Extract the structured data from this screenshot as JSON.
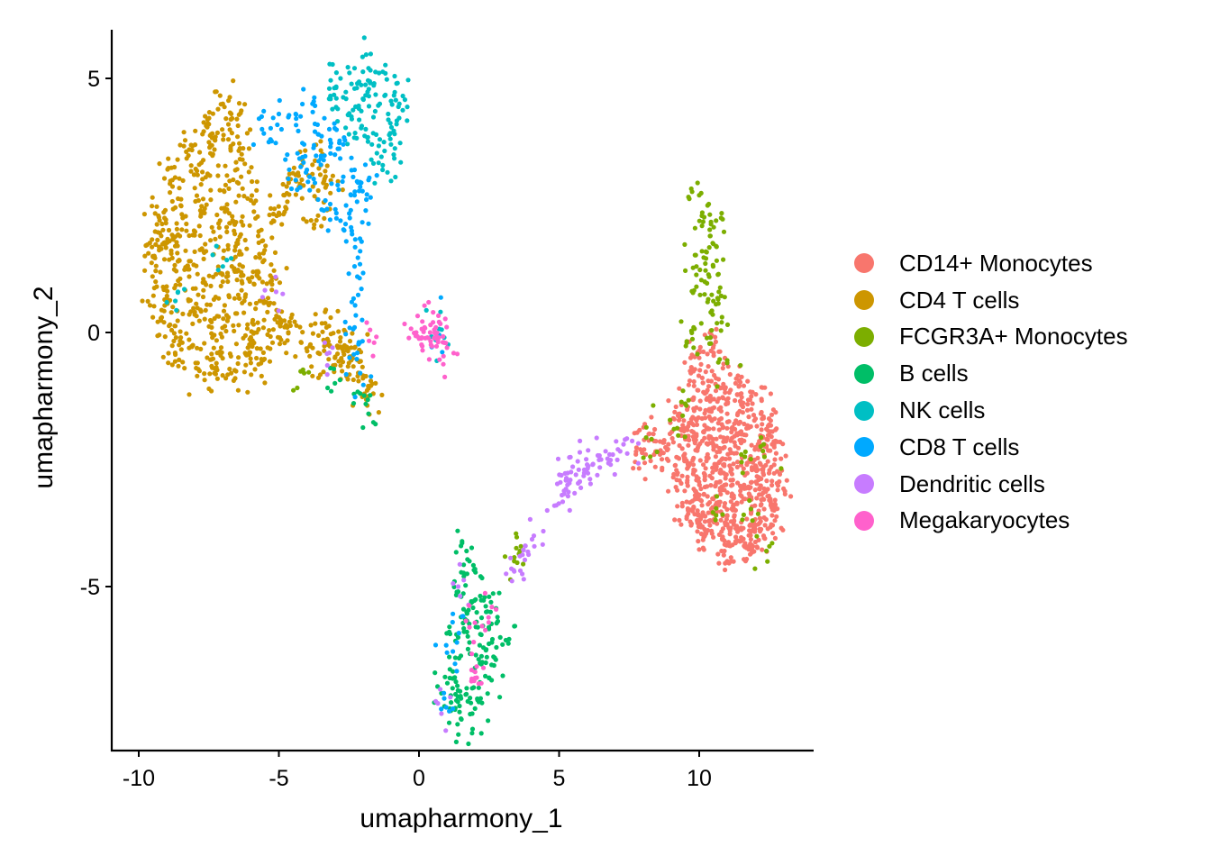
{
  "chart_data": {
    "type": "scatter",
    "xlabel": "umapharmony_1",
    "ylabel": "umapharmony_2",
    "xlim": [
      -11,
      14
    ],
    "ylim": [
      -8.2,
      6
    ],
    "xticks": [
      {
        "value": -10,
        "label": "-10"
      },
      {
        "value": -5,
        "label": "-5"
      },
      {
        "value": 0,
        "label": "0"
      },
      {
        "value": 5,
        "label": "5"
      },
      {
        "value": 10,
        "label": "10"
      }
    ],
    "yticks": [
      {
        "value": 5,
        "label": "5"
      },
      {
        "value": 0,
        "label": "0"
      },
      {
        "value": -5,
        "label": "-5"
      }
    ],
    "legend_position": "right",
    "grid": false,
    "series": [
      {
        "name": "CD14+ Monocytes",
        "color": "#F8766D",
        "points": [
          [
            10.2,
            -1.2
          ],
          [
            10.6,
            -0.9
          ],
          [
            11.3,
            -1.0
          ],
          [
            11.9,
            -1.4
          ],
          [
            12.4,
            -1.9
          ],
          [
            12.7,
            -2.5
          ],
          [
            12.8,
            -3.1
          ],
          [
            12.7,
            -3.7
          ],
          [
            12.3,
            -4.0
          ],
          [
            11.6,
            -4.2
          ],
          [
            10.9,
            -4.3
          ],
          [
            10.2,
            -4.0
          ],
          [
            9.6,
            -3.5
          ],
          [
            9.2,
            -2.9
          ],
          [
            8.9,
            -2.2
          ],
          [
            9.3,
            -1.6
          ],
          [
            9.8,
            -1.5
          ],
          [
            10.4,
            -1.7
          ],
          [
            11.0,
            -1.6
          ],
          [
            11.6,
            -1.8
          ],
          [
            12.1,
            -2.2
          ],
          [
            12.3,
            -2.8
          ],
          [
            12.2,
            -3.4
          ],
          [
            11.8,
            -3.8
          ],
          [
            11.1,
            -3.9
          ],
          [
            10.4,
            -3.7
          ],
          [
            9.9,
            -3.2
          ],
          [
            9.6,
            -2.6
          ],
          [
            9.9,
            -2.0
          ],
          [
            10.5,
            -2.2
          ],
          [
            11.1,
            -2.3
          ],
          [
            11.7,
            -2.6
          ],
          [
            11.8,
            -3.2
          ],
          [
            11.3,
            -3.5
          ],
          [
            10.7,
            -3.4
          ],
          [
            10.2,
            -2.9
          ],
          [
            10.6,
            -2.7
          ],
          [
            11.2,
            -2.9
          ],
          [
            10.9,
            -3.1
          ],
          [
            10.8,
            -2.5
          ],
          [
            8.2,
            -2.0
          ],
          [
            8.6,
            -2.4
          ],
          [
            7.9,
            -2.3
          ],
          [
            10.0,
            -0.5
          ],
          [
            9.7,
            -0.8
          ],
          [
            10.5,
            -0.3
          ],
          [
            11.5,
            -4.1
          ],
          [
            10.0,
            -3.7
          ],
          [
            12.5,
            -3.3
          ],
          [
            9.5,
            -2.1
          ],
          [
            10.3,
            -1.9
          ],
          [
            11.4,
            -2.0
          ],
          [
            12.0,
            -2.7
          ],
          [
            11.0,
            -3.6
          ],
          [
            10.1,
            -3.4
          ],
          [
            9.8,
            -2.7
          ],
          [
            10.7,
            -1.3
          ],
          [
            11.5,
            -1.2
          ],
          [
            12.2,
            -1.6
          ],
          [
            9.4,
            -1.9
          ],
          [
            10.9,
            -4.1
          ],
          [
            11.9,
            -3.9
          ],
          [
            12.6,
            -2.2
          ],
          [
            10.3,
            -2.4
          ],
          [
            11.6,
            -3.0
          ]
        ]
      },
      {
        "name": "CD4 T cells",
        "color": "#CD9600",
        "points": [
          [
            -9.5,
            1.5
          ],
          [
            -9.3,
            2.3
          ],
          [
            -8.8,
            3.0
          ],
          [
            -8.2,
            3.6
          ],
          [
            -7.5,
            4.1
          ],
          [
            -7.0,
            4.5
          ],
          [
            -6.5,
            4.2
          ],
          [
            -6.3,
            3.4
          ],
          [
            -6.0,
            2.6
          ],
          [
            -5.6,
            1.8
          ],
          [
            -5.3,
            1.0
          ],
          [
            -5.0,
            0.3
          ],
          [
            -5.4,
            -0.3
          ],
          [
            -6.0,
            -0.6
          ],
          [
            -6.7,
            -0.8
          ],
          [
            -7.3,
            -0.8
          ],
          [
            -7.9,
            -0.6
          ],
          [
            -8.5,
            -0.1
          ],
          [
            -9.0,
            0.6
          ],
          [
            -9.4,
            1.0
          ],
          [
            -8.9,
            1.8
          ],
          [
            -8.5,
            2.5
          ],
          [
            -7.9,
            3.1
          ],
          [
            -7.3,
            3.6
          ],
          [
            -6.9,
            2.9
          ],
          [
            -7.1,
            2.2
          ],
          [
            -7.6,
            1.6
          ],
          [
            -8.2,
            1.1
          ],
          [
            -8.0,
            0.4
          ],
          [
            -7.4,
            0.1
          ],
          [
            -6.8,
            0.3
          ],
          [
            -6.2,
            0.7
          ],
          [
            -5.8,
            1.2
          ],
          [
            -6.4,
            1.6
          ],
          [
            -7.0,
            1.0
          ],
          [
            -7.8,
            2.4
          ],
          [
            -8.6,
            1.4
          ],
          [
            -6.6,
            2.0
          ],
          [
            -5.9,
            0.0
          ],
          [
            -4.7,
            0.1
          ],
          [
            -4.2,
            -0.2
          ],
          [
            -3.6,
            -0.4
          ],
          [
            -3.0,
            -0.5
          ],
          [
            -2.5,
            -0.6
          ],
          [
            -2.8,
            -0.1
          ],
          [
            -3.3,
            0.1
          ],
          [
            -2.3,
            -0.3
          ],
          [
            -2.0,
            -0.9
          ],
          [
            -1.8,
            -1.1
          ],
          [
            -5.2,
            2.2
          ],
          [
            -4.8,
            2.7
          ],
          [
            -4.4,
            3.1
          ],
          [
            -3.8,
            3.3
          ],
          [
            -3.3,
            2.9
          ],
          [
            -3.6,
            2.3
          ],
          [
            -9.1,
            0.2
          ],
          [
            -8.7,
            -0.4
          ],
          [
            -7.2,
            -0.4
          ],
          [
            -6.1,
            -0.3
          ],
          [
            -5.5,
            0.6
          ],
          [
            -8.3,
            2.0
          ],
          [
            -7.7,
            0.7
          ],
          [
            -6.5,
            1.2
          ],
          [
            -9.2,
            1.9
          ],
          [
            -6.8,
            3.8
          ]
        ]
      },
      {
        "name": "FCGR3A+ Monocytes",
        "color": "#7CAE00",
        "points": [
          [
            10.0,
            2.7
          ],
          [
            10.3,
            2.5
          ],
          [
            10.6,
            2.2
          ],
          [
            10.4,
            1.9
          ],
          [
            10.1,
            1.6
          ],
          [
            10.5,
            1.3
          ],
          [
            10.2,
            1.0
          ],
          [
            10.7,
            0.8
          ],
          [
            9.9,
            0.9
          ],
          [
            10.3,
            0.6
          ],
          [
            10.8,
            0.2
          ],
          [
            9.8,
            0.1
          ],
          [
            10.1,
            2.1
          ],
          [
            10.6,
            1.7
          ],
          [
            9.9,
            1.3
          ],
          [
            9.8,
            -0.3
          ],
          [
            10.4,
            -0.1
          ],
          [
            11.0,
            -0.6
          ],
          [
            9.5,
            -1.4
          ],
          [
            12.3,
            -2.2
          ],
          [
            11.9,
            -3.7
          ],
          [
            12.4,
            -4.3
          ],
          [
            9.1,
            -1.9
          ],
          [
            8.3,
            -2.1
          ],
          [
            11.5,
            -2.4
          ],
          [
            10.6,
            -3.6
          ],
          [
            -4.1,
            -0.8
          ],
          [
            3.6,
            -4.3
          ],
          [
            3.4,
            -4.5
          ]
        ]
      },
      {
        "name": "B cells",
        "color": "#00BE67",
        "points": [
          [
            1.5,
            -4.2
          ],
          [
            1.8,
            -4.5
          ],
          [
            2.2,
            -4.8
          ],
          [
            2.5,
            -5.2
          ],
          [
            2.8,
            -5.6
          ],
          [
            2.9,
            -6.0
          ],
          [
            2.7,
            -6.4
          ],
          [
            2.5,
            -6.8
          ],
          [
            2.2,
            -7.2
          ],
          [
            1.9,
            -7.5
          ],
          [
            1.5,
            -7.6
          ],
          [
            1.1,
            -7.4
          ],
          [
            0.8,
            -7.1
          ],
          [
            1.1,
            -6.8
          ],
          [
            1.3,
            -6.4
          ],
          [
            1.4,
            -6.0
          ],
          [
            1.5,
            -5.6
          ],
          [
            1.4,
            -5.1
          ],
          [
            1.6,
            -4.8
          ],
          [
            1.9,
            -5.3
          ],
          [
            2.1,
            -5.8
          ],
          [
            2.3,
            -6.2
          ],
          [
            2.0,
            -6.6
          ],
          [
            1.7,
            -7.0
          ],
          [
            1.5,
            -7.2
          ],
          [
            1.8,
            -6.1
          ],
          [
            2.4,
            -5.5
          ],
          [
            1.7,
            -5.5
          ],
          [
            2.6,
            -6.1
          ],
          [
            1.2,
            -7.0
          ],
          [
            2.0,
            -7.4
          ],
          [
            -3.0,
            -1.0
          ],
          [
            -1.8,
            -1.6
          ],
          [
            -2.1,
            -1.2
          ]
        ]
      },
      {
        "name": "NK cells",
        "color": "#00BFC4",
        "points": [
          [
            -2.8,
            5.0
          ],
          [
            -2.3,
            5.2
          ],
          [
            -1.8,
            5.2
          ],
          [
            -1.2,
            5.1
          ],
          [
            -0.8,
            4.9
          ],
          [
            -0.7,
            4.5
          ],
          [
            -0.8,
            4.1
          ],
          [
            -1.0,
            3.7
          ],
          [
            -1.4,
            3.8
          ],
          [
            -1.9,
            4.0
          ],
          [
            -2.4,
            4.2
          ],
          [
            -2.9,
            4.4
          ],
          [
            -3.2,
            4.8
          ],
          [
            -2.6,
            4.6
          ],
          [
            -2.0,
            4.6
          ],
          [
            -1.4,
            4.5
          ],
          [
            -1.1,
            4.3
          ],
          [
            -1.6,
            4.9
          ],
          [
            -2.2,
            4.9
          ],
          [
            -0.9,
            3.5
          ],
          [
            -1.3,
            3.2
          ],
          [
            -1.7,
            3.4
          ],
          [
            -2.5,
            3.9
          ],
          [
            0.6,
            0.0
          ],
          [
            0.9,
            -0.1
          ],
          [
            -8.6,
            0.8
          ],
          [
            -7.0,
            1.3
          ]
        ]
      },
      {
        "name": "CD8 T cells",
        "color": "#00A9FF",
        "points": [
          [
            -5.6,
            4.0
          ],
          [
            -5.0,
            4.3
          ],
          [
            -4.4,
            4.3
          ],
          [
            -3.8,
            4.5
          ],
          [
            -3.2,
            4.0
          ],
          [
            -2.7,
            3.7
          ],
          [
            -2.3,
            3.2
          ],
          [
            -1.8,
            3.0
          ],
          [
            -2.3,
            2.7
          ],
          [
            -2.9,
            2.9
          ],
          [
            -3.5,
            3.3
          ],
          [
            -4.1,
            3.7
          ],
          [
            -4.7,
            3.5
          ],
          [
            -3.9,
            2.8
          ],
          [
            -3.4,
            2.4
          ],
          [
            -2.8,
            2.2
          ],
          [
            -2.4,
            2.0
          ],
          [
            -2.1,
            1.6
          ],
          [
            -2.2,
            1.1
          ],
          [
            -2.4,
            0.6
          ],
          [
            -2.3,
            0.1
          ],
          [
            -2.2,
            -0.4
          ],
          [
            -2.1,
            -0.8
          ],
          [
            -3.6,
            3.9
          ],
          [
            -4.4,
            3.0
          ],
          [
            -3.0,
            3.5
          ],
          [
            -5.3,
            3.8
          ],
          [
            -2.6,
            2.5
          ],
          [
            0.7,
            -0.1
          ],
          [
            1.2,
            -5.7
          ],
          [
            0.9,
            -7.2
          ],
          [
            1.0,
            -6.3
          ],
          [
            -1.9,
            2.4
          ],
          [
            -4.0,
            3.2
          ]
        ]
      },
      {
        "name": "Dendritic cells",
        "color": "#C77CFF",
        "points": [
          [
            5.1,
            -3.2
          ],
          [
            5.3,
            -3.0
          ],
          [
            5.6,
            -2.8
          ],
          [
            5.9,
            -2.7
          ],
          [
            6.2,
            -2.6
          ],
          [
            6.5,
            -2.5
          ],
          [
            6.8,
            -2.4
          ],
          [
            7.1,
            -2.3
          ],
          [
            7.3,
            -2.2
          ],
          [
            5.4,
            -2.9
          ],
          [
            5.7,
            -2.7
          ],
          [
            6.0,
            -2.6
          ],
          [
            4.9,
            -3.4
          ],
          [
            3.6,
            -4.4
          ],
          [
            3.4,
            -4.7
          ],
          [
            3.8,
            -4.2
          ],
          [
            4.1,
            -4.0
          ],
          [
            0.8,
            -7.5
          ],
          [
            1.4,
            -5.0
          ],
          [
            -5.1,
            0.8
          ],
          [
            -3.2,
            -0.4
          ]
        ]
      },
      {
        "name": "Megakaryocytes",
        "color": "#FF61CC",
        "points": [
          [
            -0.1,
            0.0
          ],
          [
            0.2,
            0.1
          ],
          [
            0.4,
            0.0
          ],
          [
            0.5,
            0.2
          ],
          [
            0.3,
            -0.1
          ],
          [
            0.7,
            -0.1
          ],
          [
            0.9,
            -0.2
          ],
          [
            1.0,
            -0.3
          ],
          [
            0.1,
            -0.1
          ],
          [
            0.6,
            0.1
          ],
          [
            -1.6,
            -0.2
          ],
          [
            1.8,
            -5.8
          ],
          [
            2.3,
            -6.6
          ],
          [
            2.0,
            -6.8
          ],
          [
            2.6,
            -5.4
          ]
        ]
      }
    ]
  }
}
